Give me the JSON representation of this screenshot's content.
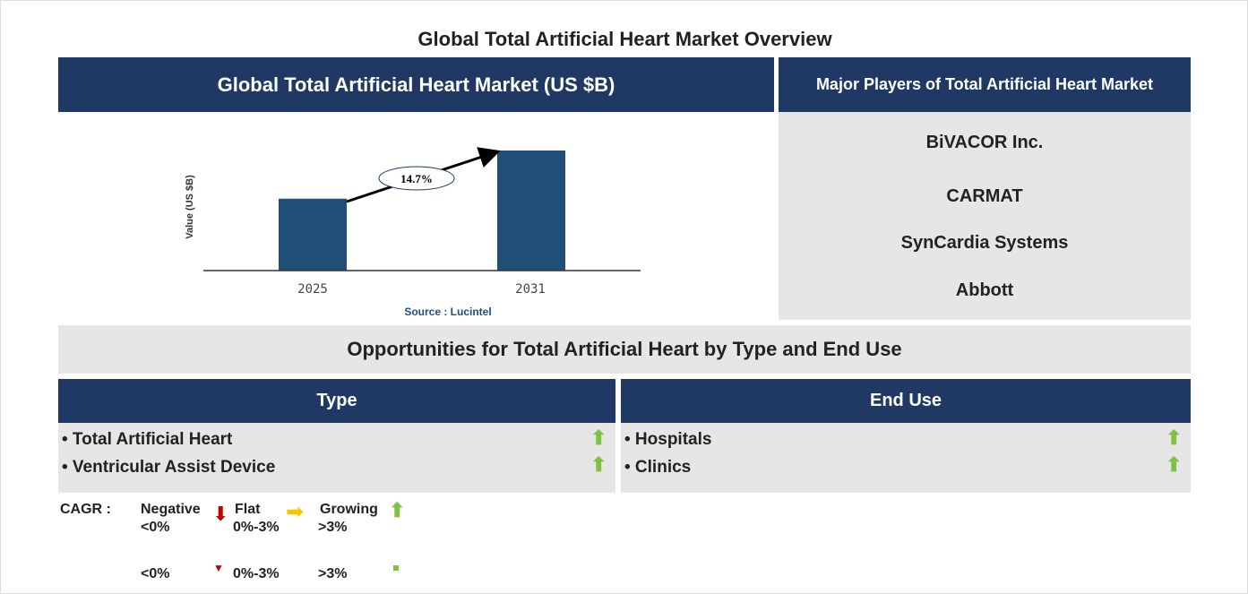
{
  "title": "Global Total Artificial Heart Market Overview",
  "market_header": "Global Total Artificial Heart Market (US $B)",
  "players_header": "Major Players of Total Artificial Heart Market",
  "players": [
    "BiVACOR Inc.",
    "CARMAT",
    "SynCardia Systems",
    "Abbott"
  ],
  "opportunities_title": "Opportunities for Total Artificial Heart by Type and End Use",
  "type": {
    "header": "Type",
    "items": [
      "• Total Artificial Heart",
      "• Ventricular Assist Device"
    ],
    "trend": [
      "up",
      "up"
    ]
  },
  "end_use": {
    "header": "End Use",
    "items": [
      "• Hospitals",
      "• Clinics"
    ],
    "trend": [
      "up",
      "up"
    ]
  },
  "legend": {
    "cagr": "CAGR :",
    "negative": "Negative",
    "negative_range": "<0%",
    "flat": "Flat",
    "flat_range": "0%-3%",
    "growing": "Growing",
    "growing_range": ">3%",
    "row2": [
      "<0%",
      "0%-3%",
      ">3%"
    ]
  },
  "colors": {
    "navy": "#1f3864",
    "bar": "#1f4e79",
    "grey": "#e7e6e6",
    "up": "#7dc242",
    "down": "#c00000",
    "flat": "#ffc000"
  },
  "chart_data": {
    "type": "bar",
    "categories": [
      "2025",
      "2031"
    ],
    "values": [
      1.0,
      1.67
    ],
    "ylabel": "Value (US $B)",
    "annotation": "14.7%",
    "source": "Source : Lucintel"
  }
}
